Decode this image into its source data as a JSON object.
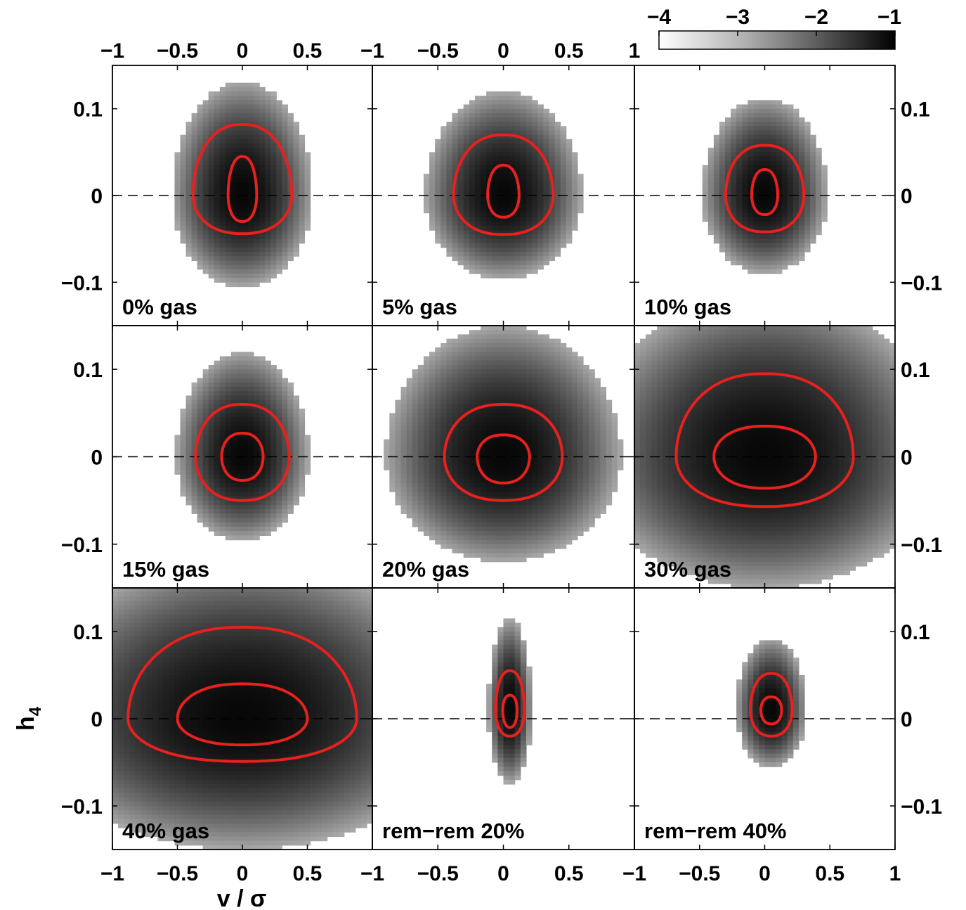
{
  "chart_data": {
    "type": "heatmap",
    "layout": "3x3 grid of density maps (log10 fraction) with 1-sigma and 2-sigma contours",
    "xlabel": "v / σ",
    "ylabel": "h",
    "ylabel_subscript": "4",
    "xlim": [
      -1,
      1
    ],
    "ylim": [
      -0.15,
      0.15
    ],
    "x_ticks": [
      -1,
      -0.5,
      0,
      0.5,
      1
    ],
    "x_tick_labels": [
      "−1",
      "−0.5",
      "0",
      "0.5",
      "1"
    ],
    "y_ticks": [
      -0.1,
      0,
      0.1
    ],
    "y_tick_labels": [
      "−0.1",
      "0",
      "0.1"
    ],
    "reference_line": {
      "y": 0,
      "style": "dashed"
    },
    "colorbar": {
      "range": [
        -4,
        -1
      ],
      "ticks": [
        -4,
        -3,
        -2,
        -1
      ],
      "tick_labels": [
        "−4",
        "−3",
        "−2",
        "−1"
      ],
      "colormap": "white-to-black"
    },
    "contour_color": "#e8201e",
    "panels": [
      {
        "label": "0% gas",
        "center": [
          0.0,
          0.0
        ],
        "sx": 0.18,
        "sy": 0.035,
        "outer": {
          "xw": 0.38,
          "top": 0.082,
          "bot": -0.044
        },
        "inner": {
          "xw": 0.11,
          "top": 0.045,
          "bot": -0.03
        }
      },
      {
        "label": "5% gas",
        "center": [
          0.0,
          0.0
        ],
        "sx": 0.2,
        "sy": 0.032,
        "outer": {
          "xw": 0.38,
          "top": 0.07,
          "bot": -0.045
        },
        "inner": {
          "xw": 0.12,
          "top": 0.035,
          "bot": -0.025
        }
      },
      {
        "label": "10% gas",
        "center": [
          0.0,
          0.0
        ],
        "sx": 0.16,
        "sy": 0.03,
        "outer": {
          "xw": 0.3,
          "top": 0.058,
          "bot": -0.042
        },
        "inner": {
          "xw": 0.1,
          "top": 0.03,
          "bot": -0.022
        }
      },
      {
        "label": "15% gas",
        "center": [
          0.0,
          0.0
        ],
        "sx": 0.17,
        "sy": 0.032,
        "outer": {
          "xw": 0.36,
          "top": 0.06,
          "bot": -0.05
        },
        "inner": {
          "xw": 0.16,
          "top": 0.027,
          "bot": -0.027
        }
      },
      {
        "label": "20% gas",
        "center": [
          0.0,
          0.0
        ],
        "sx": 0.3,
        "sy": 0.04,
        "outer": {
          "xw": 0.45,
          "top": 0.06,
          "bot": -0.05
        },
        "inner": {
          "xw": 0.2,
          "top": 0.025,
          "bot": -0.03
        }
      },
      {
        "label": "30% gas",
        "center": [
          0.0,
          0.0
        ],
        "sx": 0.45,
        "sy": 0.05,
        "outer": {
          "xw": 0.68,
          "top": 0.095,
          "bot": -0.057
        },
        "inner": {
          "xw": 0.39,
          "top": 0.035,
          "bot": -0.036
        }
      },
      {
        "label": "40% gas",
        "center": [
          0.0,
          0.0
        ],
        "sx": 0.55,
        "sy": 0.05,
        "outer": {
          "xw": 0.88,
          "top": 0.105,
          "bot": -0.049
        },
        "inner": {
          "xw": 0.5,
          "top": 0.04,
          "bot": -0.03
        }
      },
      {
        "label": "rem−rem 20%",
        "center": [
          0.05,
          0.01
        ],
        "sx": 0.055,
        "sy": 0.028,
        "outer": {
          "xw": 0.11,
          "top": 0.055,
          "bot": -0.02
        },
        "inner": {
          "xw": 0.055,
          "top": 0.027,
          "bot": -0.01
        }
      },
      {
        "label": "rem−rem 40%",
        "center": [
          0.05,
          0.01
        ],
        "sx": 0.09,
        "sy": 0.022,
        "outer": {
          "xw": 0.16,
          "top": 0.052,
          "bot": -0.02
        },
        "inner": {
          "xw": 0.08,
          "top": 0.025,
          "bot": -0.006
        }
      }
    ]
  }
}
